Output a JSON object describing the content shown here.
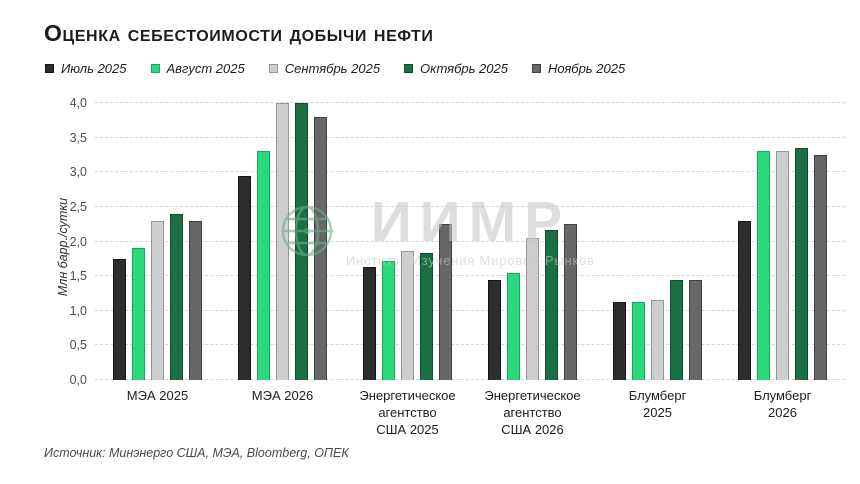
{
  "title": "Оценка себестоимости добычи нефти",
  "source": "Источник: Минэнерго США, МЭА, Bloomberg, ОПЕК",
  "watermark": {
    "logo_icon": "globe-icon",
    "name": "ИИМР",
    "subtitle": "Институт Изучения Мировых Рынков",
    "logo_color": "#6fae88",
    "text_color": "#c9c9c9"
  },
  "chart_data": {
    "type": "bar",
    "title": "Оценка себестоимости добычи нефти",
    "xlabel": "",
    "ylabel": "Млн барр./сутки",
    "ylim": [
      0,
      4
    ],
    "ytick_step": 0.5,
    "ytick_format": "comma-decimal-1",
    "grid": "horizontal-dashed",
    "legend_position": "top-left",
    "categories": [
      "МЭА 2025",
      "МЭА 2026",
      "Энергетическое\nагентство\nСША 2025",
      "Энергетическое\nагентство\nСША 2026",
      "Блумберг\n2025",
      "Блумберг\n2026"
    ],
    "series": [
      {
        "name": "Июль 2025",
        "color": "#2d2d2d",
        "border_color": "#161616",
        "values": [
          1.75,
          2.95,
          1.63,
          1.45,
          1.13,
          2.3
        ]
      },
      {
        "name": "Август 2025",
        "color": "#2bd97c",
        "border_color": "#18a65c",
        "values": [
          1.9,
          3.3,
          1.72,
          1.55,
          1.13,
          3.3
        ]
      },
      {
        "name": "Сентябрь 2025",
        "color": "#cecece",
        "border_color": "#959595",
        "values": [
          2.3,
          4.0,
          1.87,
          2.05,
          1.15,
          3.3
        ]
      },
      {
        "name": "Октябрь 2025",
        "color": "#1a6f45",
        "border_color": "#0d4c2e",
        "values": [
          2.4,
          4.0,
          1.84,
          2.17,
          1.45,
          3.35
        ]
      },
      {
        "name": "Ноябрь 2025",
        "color": "#676767",
        "border_color": "#414141",
        "values": [
          2.3,
          3.8,
          2.25,
          2.25,
          1.45,
          3.25
        ]
      }
    ]
  }
}
